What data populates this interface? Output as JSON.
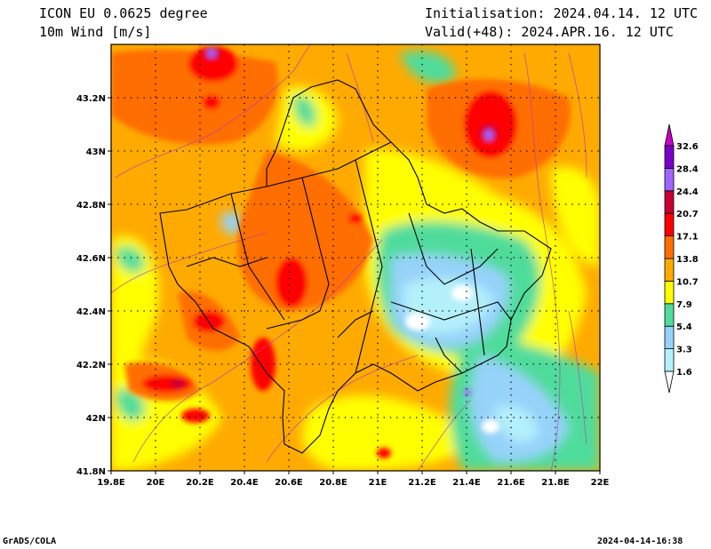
{
  "header": {
    "model": "ICON EU 0.0625 degree",
    "field": "10m Wind [m/s]",
    "init": "Initialisation: 2024.04.14. 12 UTC",
    "valid": "Valid(+48): 2024.APR.16. 12 UTC"
  },
  "footer": {
    "left": "GrADS/COLA",
    "right": "2024-04-14-16:38"
  },
  "map": {
    "lon_range": [
      19.8,
      22.0
    ],
    "lat_range": [
      41.8,
      43.4
    ],
    "lon_ticks": [
      "19.8E",
      "20E",
      "20.2E",
      "20.4E",
      "20.6E",
      "20.8E",
      "21E",
      "21.2E",
      "21.4E",
      "21.6E",
      "21.8E",
      "22E"
    ],
    "lat_ticks": [
      "41.8N",
      "42N",
      "42.2N",
      "42.4N",
      "42.6N",
      "42.8N",
      "43N",
      "43.2N"
    ],
    "grid": true
  },
  "colorbar": {
    "levels": [
      "1.6",
      "3.3",
      "5.4",
      "7.9",
      "10.7",
      "13.8",
      "17.1",
      "20.7",
      "24.4",
      "28.4",
      "32.6"
    ],
    "colors": [
      "#ffffff",
      "#b4f0fa",
      "#96d2fa",
      "#50dc9b",
      "#ffff00",
      "#ffaa00",
      "#ff6e00",
      "#ff0000",
      "#c80032",
      "#a064ff",
      "#7800c8",
      "#c800c8"
    ]
  }
}
